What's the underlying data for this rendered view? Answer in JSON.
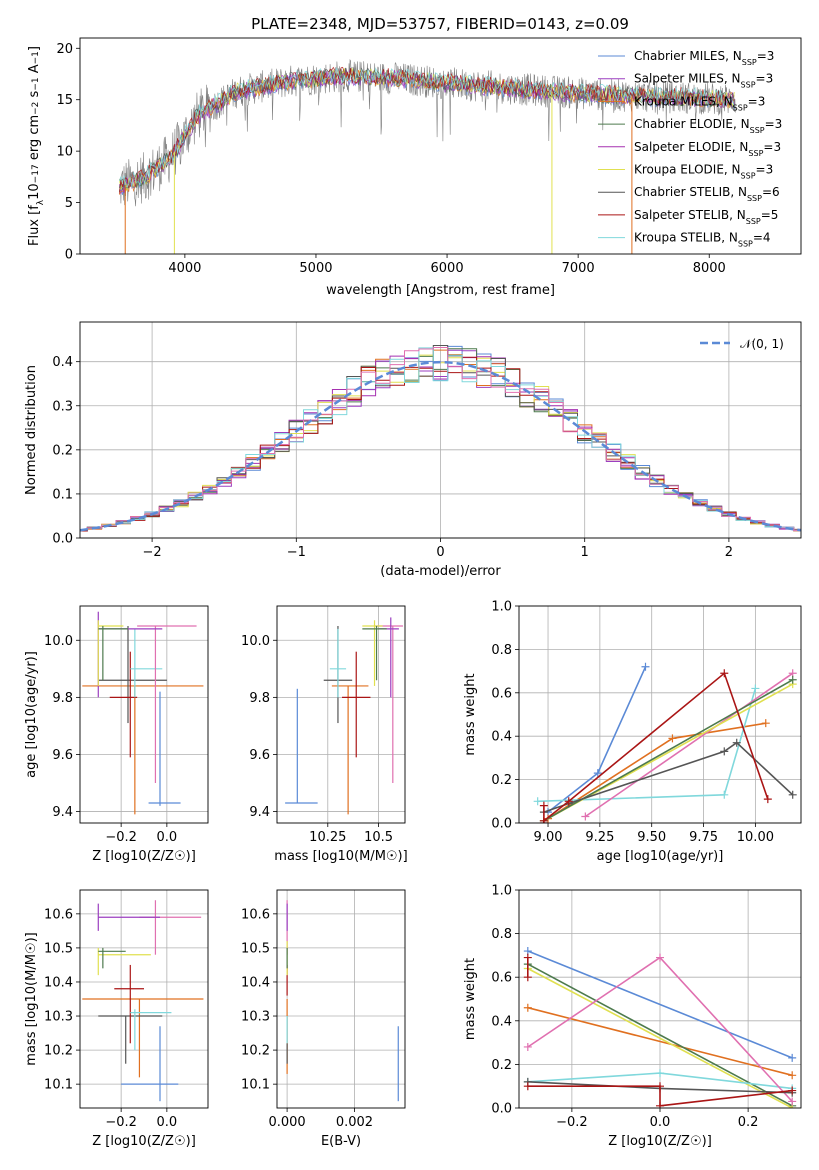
{
  "figure_title": "PLATE=2348, MJD=53757, FIBERID=0143, z=0.09",
  "colors": {
    "chabrier_miles": "#5b8ad6",
    "salpeter_miles": "#9b3fc0",
    "kroupa_miles": "#e07020",
    "chabrier_elodie": "#4d7a4d",
    "salpeter_elodie": "#a530b0",
    "kroupa_elodie": "#e0e050",
    "chabrier_stelib": "#555555",
    "salpeter_stelib": "#aa1515",
    "kroupa_stelib": "#80d8dc",
    "pink": "#e070b0",
    "gauss": "#5b8ad6",
    "data": "#808080"
  },
  "legends": {
    "spectrum": [
      {
        "label": "Chabrier MILES, N_SSP=3",
        "color": "#5b8ad6"
      },
      {
        "label": "Salpeter MILES, N_SSP=3",
        "color": "#9b3fc0"
      },
      {
        "label": "Kroupa MILES, N_SSP=3",
        "color": "#e07020"
      },
      {
        "label": "Chabrier ELODIE, N_SSP=3",
        "color": "#4d7a4d"
      },
      {
        "label": "Salpeter ELODIE, N_SSP=3",
        "color": "#a530b0"
      },
      {
        "label": "Kroupa ELODIE, N_SSP=3",
        "color": "#e0e050"
      },
      {
        "label": "Chabrier STELIB, N_SSP=6",
        "color": "#555555"
      },
      {
        "label": "Salpeter STELIB, N_SSP=5",
        "color": "#aa1515"
      },
      {
        "label": "Kroupa STELIB, N_SSP=4",
        "color": "#80d8dc"
      }
    ],
    "residual_label": "𝒩(0, 1)"
  },
  "chart_data": [
    {
      "id": "spectrum",
      "type": "line",
      "title": "PLATE=2348, MJD=53757, FIBERID=0143, z=0.09",
      "xlabel": "wavelength [Angstrom, rest frame]",
      "ylabel": "Flux [f_λ 10^-17 erg cm^-2 s^-1 A^-1]",
      "xlim": [
        3200,
        8700
      ],
      "ylim": [
        0,
        21
      ],
      "xticks": [
        4000,
        5000,
        6000,
        7000,
        8000
      ],
      "yticks": [
        0,
        5,
        10,
        15,
        20
      ],
      "continuum": {
        "x": [
          3500,
          3700,
          3900,
          4100,
          4400,
          4800,
          5200,
          5600,
          6000,
          6400,
          6800,
          7200,
          7600,
          8000,
          8200
        ],
        "y": [
          6.5,
          7.5,
          9.5,
          13.5,
          15.8,
          16.8,
          17.3,
          17.1,
          16.6,
          16.2,
          15.8,
          15.5,
          15.3,
          15.1,
          15.0
        ]
      }
    },
    {
      "id": "residuals",
      "type": "histogram",
      "xlabel": "(data-model)/error",
      "ylabel": "Normed distribution",
      "xlim": [
        -2.5,
        2.5
      ],
      "ylim": [
        0,
        0.49
      ],
      "xticks": [
        -2,
        -1,
        0,
        1,
        2
      ],
      "yticks": [
        0.0,
        0.1,
        0.2,
        0.3,
        0.4
      ],
      "bin_width": 0.1,
      "gaussian": {
        "mean": 0,
        "sigma": 1
      }
    },
    {
      "id": "age-vs-Z",
      "type": "errorbar",
      "xlabel": "Z [log10(Z/Z☉)]",
      "ylabel": "age [log10(age/yr)]",
      "xlim": [
        -0.38,
        0.18
      ],
      "ylim": [
        9.36,
        10.12
      ],
      "xticks": [
        -0.2,
        0.0
      ],
      "yticks": [
        9.4,
        9.6,
        9.8,
        10.0
      ],
      "points": [
        {
          "color": "#5b8ad6",
          "x": [
            -0.08,
            0.06
          ],
          "y": [
            9.43,
            9.43
          ],
          "vx": -0.03,
          "vy": [
            9.42,
            9.82
          ]
        },
        {
          "color": "#e07020",
          "x": [
            -0.37,
            0.16
          ],
          "y": [
            9.84,
            9.84
          ],
          "vx": -0.14,
          "vy": [
            9.39,
            9.84
          ]
        },
        {
          "color": "#555555",
          "x": [
            -0.3,
            0.0
          ],
          "y": [
            9.86,
            9.86
          ],
          "vx": -0.17,
          "vy": [
            9.71,
            10.05
          ]
        },
        {
          "color": "#aa1515",
          "x": [
            -0.25,
            -0.13
          ],
          "y": [
            9.8,
            9.8
          ],
          "vx": -0.16,
          "vy": [
            9.59,
            9.96
          ]
        },
        {
          "color": "#80d8dc",
          "x": [
            -0.16,
            -0.02
          ],
          "y": [
            9.9,
            9.9
          ],
          "vx": -0.14,
          "vy": [
            9.8,
            10.04
          ]
        },
        {
          "color": "#e070b0",
          "x": [
            -0.13,
            0.13
          ],
          "y": [
            10.05,
            10.05
          ],
          "vx": -0.05,
          "vy": [
            9.5,
            10.05
          ]
        },
        {
          "color": "#9b3fc0",
          "x": [
            -0.3,
            -0.02
          ],
          "y": [
            10.04,
            10.04
          ],
          "vx": -0.3,
          "vy": [
            9.8,
            10.1
          ]
        },
        {
          "color": "#e0e050",
          "x": [
            -0.3,
            -0.19
          ],
          "y": [
            10.05,
            10.05
          ],
          "vx": -0.3,
          "vy": [
            9.84,
            10.07
          ]
        },
        {
          "color": "#4d7a4d",
          "x": [
            -0.3,
            -0.17
          ],
          "y": [
            10.04,
            10.04
          ],
          "vx": -0.28,
          "vy": [
            9.86,
            10.05
          ]
        }
      ]
    },
    {
      "id": "age-vs-mass",
      "type": "errorbar",
      "xlabel": "mass [log10(M/M☉)]",
      "ylabel": "",
      "xlim": [
        10.0,
        10.63
      ],
      "ylim": [
        9.36,
        10.12
      ],
      "xticks": [
        10.25,
        10.5
      ],
      "yticks": [
        9.4,
        9.6,
        9.8,
        10.0
      ],
      "points": [
        {
          "color": "#5b8ad6",
          "x": [
            10.04,
            10.2
          ],
          "y": [
            9.43,
            9.43
          ],
          "vx": 10.1,
          "vy": [
            9.43,
            9.83
          ]
        },
        {
          "color": "#e07020",
          "x": [
            10.27,
            10.45
          ],
          "y": [
            9.84,
            9.84
          ],
          "vx": 10.35,
          "vy": [
            9.39,
            9.84
          ]
        },
        {
          "color": "#555555",
          "x": [
            10.23,
            10.37
          ],
          "y": [
            9.86,
            9.86
          ],
          "vx": 10.3,
          "vy": [
            9.71,
            10.05
          ]
        },
        {
          "color": "#aa1515",
          "x": [
            10.32,
            10.46
          ],
          "y": [
            9.8,
            9.8
          ],
          "vx": 10.39,
          "vy": [
            9.59,
            9.96
          ]
        },
        {
          "color": "#80d8dc",
          "x": [
            10.26,
            10.34
          ],
          "y": [
            9.9,
            9.9
          ],
          "vx": 10.3,
          "vy": [
            9.8,
            10.04
          ]
        },
        {
          "color": "#e070b0",
          "x": [
            10.48,
            10.62
          ],
          "y": [
            10.05,
            10.05
          ],
          "vx": 10.57,
          "vy": [
            9.5,
            10.05
          ]
        },
        {
          "color": "#9b3fc0",
          "x": [
            10.5,
            10.6
          ],
          "y": [
            10.04,
            10.04
          ],
          "vx": 10.56,
          "vy": [
            9.8,
            10.08
          ]
        },
        {
          "color": "#e0e050",
          "x": [
            10.42,
            10.52
          ],
          "y": [
            10.05,
            10.05
          ],
          "vx": 10.48,
          "vy": [
            9.84,
            10.07
          ]
        },
        {
          "color": "#4d7a4d",
          "x": [
            10.42,
            10.54
          ],
          "y": [
            10.04,
            10.04
          ],
          "vx": 10.49,
          "vy": [
            9.86,
            10.05
          ]
        }
      ]
    },
    {
      "id": "weight-vs-age",
      "type": "line",
      "xlabel": "age [log10(age/yr)]",
      "ylabel": "mass weight",
      "xlim": [
        8.86,
        10.22
      ],
      "ylim": [
        0,
        1.0
      ],
      "xticks": [
        9.0,
        9.25,
        9.5,
        9.75,
        10.0
      ],
      "xticklabels": [
        "9.00",
        "9.25",
        "9.50",
        "9.75",
        "10.00"
      ],
      "yticks": [
        0.0,
        0.2,
        0.4,
        0.6,
        0.8,
        1.0
      ],
      "series": [
        {
          "color": "#5b8ad6",
          "x": [
            9.0,
            9.24,
            9.47
          ],
          "y": [
            0.05,
            0.23,
            0.72
          ]
        },
        {
          "color": "#e07020",
          "x": [
            9.0,
            9.6,
            10.05
          ],
          "y": [
            0.02,
            0.39,
            0.46
          ]
        },
        {
          "color": "#80d8dc",
          "x": [
            8.95,
            9.85,
            10.0
          ],
          "y": [
            0.1,
            0.13,
            0.62
          ]
        },
        {
          "color": "#e070b0",
          "x": [
            9.18,
            10.18
          ],
          "y": [
            0.03,
            0.69
          ]
        },
        {
          "color": "#e0e050",
          "x": [
            8.98,
            10.18
          ],
          "y": [
            0.01,
            0.64
          ]
        },
        {
          "color": "#4d7a4d",
          "x": [
            8.98,
            10.18
          ],
          "y": [
            0.01,
            0.66
          ]
        },
        {
          "color": "#555555",
          "x": [
            8.98,
            9.1,
            9.85,
            9.91,
            10.18
          ],
          "y": [
            0.05,
            0.09,
            0.33,
            0.37,
            0.13
          ]
        },
        {
          "color": "#aa1515",
          "x": [
            8.98,
            9.1,
            9.85,
            10.06
          ],
          "y": [
            0.01,
            0.1,
            0.69,
            0.11
          ]
        },
        {
          "color": "#aa1515",
          "x": [
            8.98,
            8.98
          ],
          "y": [
            0.0,
            0.08
          ]
        }
      ]
    },
    {
      "id": "mass-vs-Z",
      "type": "errorbar",
      "xlabel": "Z [log10(Z/Z☉)]",
      "ylabel": "mass [log10(M/M☉)]",
      "xlim": [
        -0.38,
        0.18
      ],
      "ylim": [
        10.03,
        10.67
      ],
      "xticks": [
        -0.2,
        0.0
      ],
      "yticks": [
        10.1,
        10.2,
        10.3,
        10.4,
        10.5,
        10.6
      ],
      "points": [
        {
          "color": "#5b8ad6",
          "x": [
            -0.2,
            0.05
          ],
          "y": [
            10.1,
            10.1
          ],
          "vx": -0.03,
          "vy": [
            10.05,
            10.27
          ]
        },
        {
          "color": "#e07020",
          "x": [
            -0.37,
            0.16
          ],
          "y": [
            10.35,
            10.35
          ],
          "vx": -0.12,
          "vy": [
            10.12,
            10.35
          ]
        },
        {
          "color": "#555555",
          "x": [
            -0.3,
            -0.02
          ],
          "y": [
            10.3,
            10.3
          ],
          "vx": -0.18,
          "vy": [
            10.16,
            10.3
          ]
        },
        {
          "color": "#aa1515",
          "x": [
            -0.23,
            -0.1
          ],
          "y": [
            10.38,
            10.38
          ],
          "vx": -0.16,
          "vy": [
            10.22,
            10.45
          ]
        },
        {
          "color": "#80d8dc",
          "x": [
            -0.16,
            0.02
          ],
          "y": [
            10.31,
            10.31
          ],
          "vx": -0.14,
          "vy": [
            10.2,
            10.32
          ]
        },
        {
          "color": "#e070b0",
          "x": [
            -0.12,
            0.15
          ],
          "y": [
            10.59,
            10.59
          ],
          "vx": -0.05,
          "vy": [
            10.48,
            10.64
          ]
        },
        {
          "color": "#9b3fc0",
          "x": [
            -0.3,
            -0.03
          ],
          "y": [
            10.59,
            10.59
          ],
          "vx": -0.3,
          "vy": [
            10.55,
            10.63
          ]
        },
        {
          "color": "#e0e050",
          "x": [
            -0.3,
            -0.07
          ],
          "y": [
            10.48,
            10.48
          ],
          "vx": -0.3,
          "vy": [
            10.42,
            10.5
          ]
        },
        {
          "color": "#4d7a4d",
          "x": [
            -0.3,
            -0.18
          ],
          "y": [
            10.49,
            10.49
          ],
          "vx": -0.28,
          "vy": [
            10.44,
            10.5
          ]
        }
      ]
    },
    {
      "id": "mass-vs-EBV",
      "type": "errorbar",
      "xlabel": "E(B-V)",
      "ylabel": "",
      "xlim": [
        -0.0003,
        0.0035
      ],
      "ylim": [
        10.03,
        10.67
      ],
      "xticks": [
        0.0,
        0.002
      ],
      "xticklabels": [
        "0.000",
        "0.002"
      ],
      "yticks": [
        10.1,
        10.2,
        10.3,
        10.4,
        10.5,
        10.6
      ],
      "points": [
        {
          "color": "#5b8ad6",
          "x": [
            0.0033,
            0.0033
          ],
          "y": [
            10.1,
            10.1
          ],
          "vx": 0.0033,
          "vy": [
            10.05,
            10.27
          ]
        },
        {
          "color": "#e07020",
          "x": [
            0.0,
            0.0
          ],
          "y": [
            10.35,
            10.35
          ],
          "vx": 0.0,
          "vy": [
            10.13,
            10.35
          ]
        },
        {
          "color": "#555555",
          "x": [
            0.0,
            0.0
          ],
          "y": [
            10.3,
            10.3
          ],
          "vx": 0.0,
          "vy": [
            10.16,
            10.22
          ]
        },
        {
          "color": "#aa1515",
          "x": [
            0.0,
            0.0
          ],
          "y": [
            10.38,
            10.38
          ],
          "vx": 0.0,
          "vy": [
            10.36,
            10.45
          ]
        },
        {
          "color": "#80d8dc",
          "x": [
            0.0,
            0.0
          ],
          "y": [
            10.31,
            10.31
          ],
          "vx": 0.0,
          "vy": [
            10.22,
            10.3
          ]
        },
        {
          "color": "#e070b0",
          "x": [
            0.0,
            0.0
          ],
          "y": [
            10.59,
            10.59
          ],
          "vx": 0.0,
          "vy": [
            10.48,
            10.64
          ]
        },
        {
          "color": "#9b3fc0",
          "x": [
            0.0,
            0.0
          ],
          "y": [
            10.59,
            10.59
          ],
          "vx": 0.0,
          "vy": [
            10.55,
            10.63
          ]
        },
        {
          "color": "#e0e050",
          "x": [
            0.0,
            0.0
          ],
          "y": [
            10.48,
            10.48
          ],
          "vx": 0.0,
          "vy": [
            10.42,
            10.52
          ]
        },
        {
          "color": "#4d7a4d",
          "x": [
            0.0,
            0.0
          ],
          "y": [
            10.49,
            10.49
          ],
          "vx": 0.0,
          "vy": [
            10.44,
            10.5
          ]
        }
      ]
    },
    {
      "id": "weight-vs-Z",
      "type": "line",
      "xlabel": "Z [log10(Z/Z☉)]",
      "ylabel": "mass weight",
      "xlim": [
        -0.32,
        0.32
      ],
      "ylim": [
        0,
        1.0
      ],
      "xticks": [
        -0.2,
        0.0,
        0.2
      ],
      "yticks": [
        0.0,
        0.2,
        0.4,
        0.6,
        0.8,
        1.0
      ],
      "series": [
        {
          "color": "#5b8ad6",
          "x": [
            -0.3,
            0.3
          ],
          "y": [
            0.72,
            0.23
          ]
        },
        {
          "color": "#e07020",
          "x": [
            -0.3,
            0.3
          ],
          "y": [
            0.46,
            0.15
          ]
        },
        {
          "color": "#4d7a4d",
          "x": [
            -0.3,
            0.3
          ],
          "y": [
            0.66,
            0.01
          ]
        },
        {
          "color": "#e0e050",
          "x": [
            -0.3,
            0.3
          ],
          "y": [
            0.64,
            0.0
          ]
        },
        {
          "color": "#80d8dc",
          "x": [
            -0.3,
            0.0,
            0.3
          ],
          "y": [
            0.12,
            0.16,
            0.09
          ]
        },
        {
          "color": "#e070b0",
          "x": [
            -0.3,
            0.0,
            0.3
          ],
          "y": [
            0.28,
            0.69,
            0.03
          ]
        },
        {
          "color": "#555555",
          "x": [
            -0.3,
            0.0,
            0.3
          ],
          "y": [
            0.12,
            0.09,
            0.07
          ]
        },
        {
          "color": "#aa1515",
          "x": [
            -0.3,
            0.0,
            0.0,
            0.3
          ],
          "y": [
            0.1,
            0.1,
            0.01,
            0.08
          ]
        },
        {
          "color": "#aa1515",
          "x": [
            -0.3,
            -0.3
          ],
          "y": [
            0.6,
            0.69
          ]
        }
      ]
    }
  ]
}
